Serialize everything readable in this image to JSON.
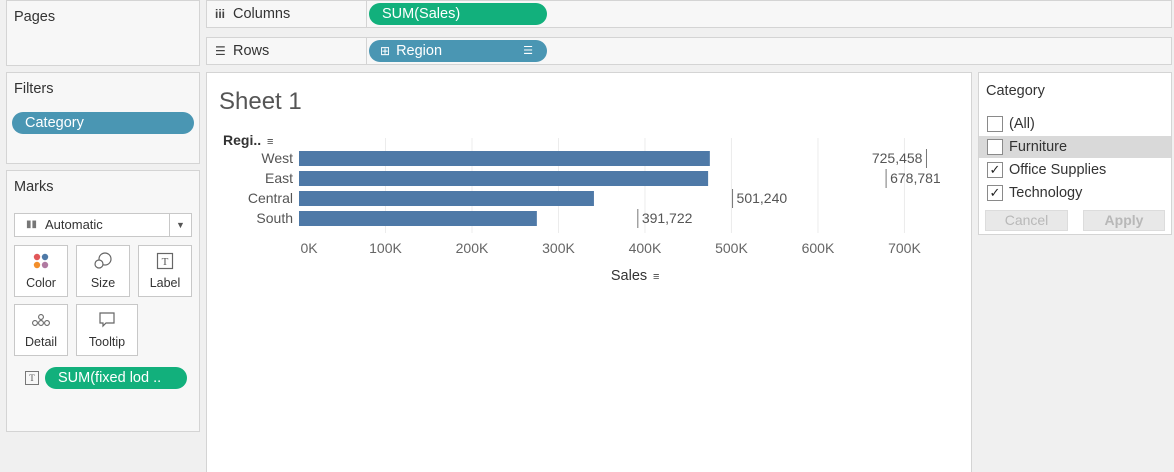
{
  "pages_panel": {
    "title": "Pages"
  },
  "filters_panel": {
    "title": "Filters",
    "pills": [
      "Category"
    ]
  },
  "marks_panel": {
    "title": "Marks",
    "mark_type": "Automatic",
    "buttons": [
      {
        "label": "Color",
        "icon": "color-dots-icon"
      },
      {
        "label": "Size",
        "icon": "size-icon"
      },
      {
        "label": "Label",
        "icon": "label-icon"
      },
      {
        "label": "Detail",
        "icon": "detail-icon"
      },
      {
        "label": "Tooltip",
        "icon": "tooltip-icon"
      }
    ],
    "field_pill": "SUM(fixed lod .."
  },
  "shelves": {
    "columns": {
      "label": "Columns",
      "pill": "SUM(Sales)"
    },
    "rows": {
      "label": "Rows",
      "pill": "Region"
    }
  },
  "sheet": {
    "title": "Sheet 1",
    "row_header": "Regi.."
  },
  "chart_data": {
    "type": "bar",
    "orientation": "horizontal",
    "categories": [
      "West",
      "East",
      "Central",
      "South"
    ],
    "values": [
      475000,
      473000,
      341000,
      275000
    ],
    "reference_labels": [
      "725,458",
      "678,781",
      "501,240",
      "391,722"
    ],
    "reference_values": [
      725458,
      678781,
      501240,
      391722
    ],
    "xlabel": "Sales",
    "ylabel": "Regi..",
    "xlim": [
      0,
      770000
    ],
    "xticks": [
      "0K",
      "100K",
      "200K",
      "300K",
      "400K",
      "500K",
      "600K",
      "700K"
    ],
    "grid": true,
    "bar_color": "#4e79a7"
  },
  "category_filter": {
    "title": "Category",
    "items": [
      {
        "label": "(All)",
        "checked": false
      },
      {
        "label": "Furniture",
        "checked": false
      },
      {
        "label": "Office Supplies",
        "checked": true
      },
      {
        "label": "Technology",
        "checked": true
      }
    ],
    "cancel_label": "Cancel",
    "apply_label": "Apply"
  },
  "colors": {
    "green_pill": "#12b07c",
    "blue_pill": "#4a96b3",
    "bar": "#4e79a7"
  }
}
